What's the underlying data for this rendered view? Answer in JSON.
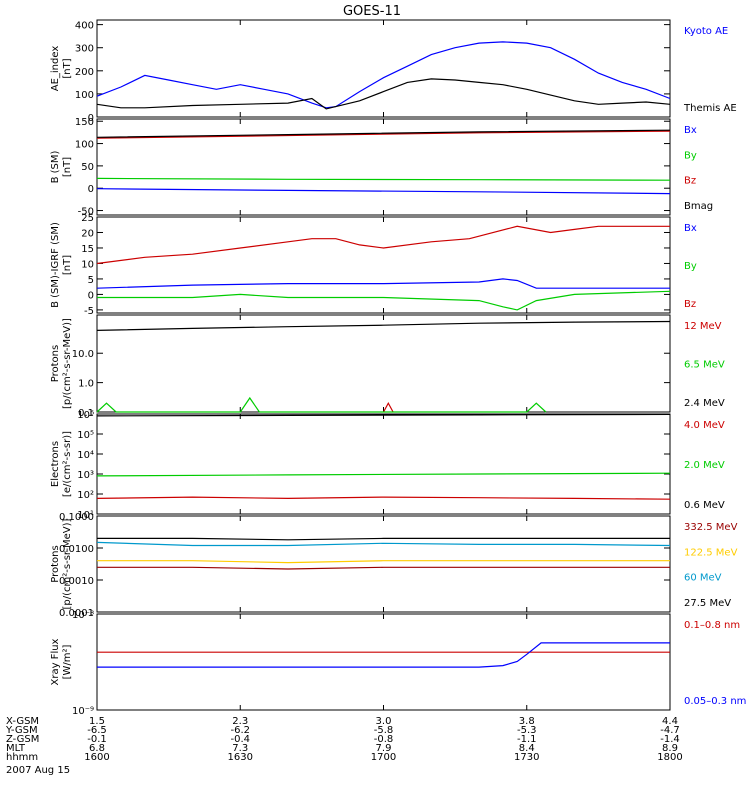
{
  "title": "GOES-11",
  "chart_data": [
    {
      "type": "line",
      "title": "GOES-11",
      "ylabel": [
        "AE_index",
        "[nT]"
      ],
      "ylim": [
        0,
        420
      ],
      "yticks": [
        0,
        100,
        200,
        300,
        400
      ],
      "ytick_labels": [
        "0",
        "100",
        "200",
        "300",
        "400"
      ],
      "scale": "linear",
      "xlim": [
        0,
        120
      ],
      "series": [
        {
          "name": "Kyoto AE",
          "color": "#0000ff",
          "x": [
            0,
            5,
            10,
            15,
            20,
            25,
            30,
            35,
            40,
            45,
            48,
            50,
            55,
            60,
            65,
            70,
            75,
            80,
            85,
            90,
            95,
            100,
            105,
            110,
            115,
            120
          ],
          "values": [
            90,
            130,
            180,
            160,
            140,
            120,
            140,
            120,
            100,
            60,
            40,
            45,
            110,
            170,
            220,
            270,
            300,
            320,
            325,
            320,
            300,
            250,
            190,
            150,
            120,
            80
          ]
        },
        {
          "name": "Themis AE",
          "color": "#000000",
          "x": [
            0,
            5,
            10,
            20,
            30,
            40,
            45,
            48,
            50,
            55,
            60,
            65,
            70,
            75,
            80,
            85,
            90,
            95,
            100,
            105,
            110,
            115,
            120
          ],
          "values": [
            55,
            40,
            40,
            50,
            55,
            60,
            80,
            35,
            45,
            70,
            110,
            150,
            165,
            160,
            150,
            140,
            120,
            95,
            70,
            55,
            60,
            65,
            55
          ]
        }
      ]
    },
    {
      "type": "line",
      "ylabel": [
        "B (SM)",
        "[nT]"
      ],
      "ylim": [
        -60,
        155
      ],
      "yticks": [
        -50,
        0,
        50,
        100,
        150
      ],
      "ytick_labels": [
        "-50",
        "0",
        "50",
        "100",
        "150"
      ],
      "scale": "linear",
      "xlim": [
        0,
        120
      ],
      "series": [
        {
          "name": "Bx",
          "color": "#0000ff",
          "x": [
            0,
            40,
            80,
            120
          ],
          "values": [
            -1,
            -5,
            -8,
            -12
          ]
        },
        {
          "name": "By",
          "color": "#00cc00",
          "x": [
            0,
            40,
            80,
            120
          ],
          "values": [
            22,
            20,
            19,
            18
          ]
        },
        {
          "name": "Bz",
          "color": "#cc0000",
          "x": [
            0,
            40,
            80,
            120
          ],
          "values": [
            112,
            118,
            124,
            128
          ]
        },
        {
          "name": "Bmag",
          "color": "#000000",
          "x": [
            0,
            40,
            80,
            120
          ],
          "values": [
            114,
            120,
            126,
            130
          ]
        }
      ]
    },
    {
      "type": "line",
      "ylabel": [
        "B (SM)-IGRF (SM)",
        "[nT]"
      ],
      "ylim": [
        -6,
        25
      ],
      "yticks": [
        -5,
        0,
        5,
        10,
        15,
        20,
        25
      ],
      "ytick_labels": [
        "-5",
        "0",
        "5",
        "10",
        "15",
        "20",
        "25"
      ],
      "scale": "linear",
      "xlim": [
        0,
        120
      ],
      "series": [
        {
          "name": "Bx",
          "color": "#0000ff",
          "x": [
            0,
            20,
            40,
            60,
            80,
            85,
            88,
            92,
            100,
            120
          ],
          "values": [
            2,
            3,
            3.5,
            3.5,
            4,
            5,
            4.5,
            2,
            2,
            2
          ]
        },
        {
          "name": "By",
          "color": "#00cc00",
          "x": [
            0,
            20,
            30,
            40,
            60,
            80,
            85,
            88,
            92,
            100,
            120
          ],
          "values": [
            -1,
            -1,
            0,
            -1,
            -1,
            -2,
            -4,
            -5,
            -2,
            0,
            1
          ]
        },
        {
          "name": "Bz",
          "color": "#cc0000",
          "x": [
            0,
            10,
            20,
            30,
            40,
            45,
            50,
            55,
            60,
            70,
            78,
            88,
            95,
            100,
            105,
            120
          ],
          "values": [
            10,
            12,
            13,
            15,
            17,
            18,
            18,
            16,
            15,
            17,
            18,
            22,
            20,
            21,
            22,
            22
          ]
        }
      ]
    },
    {
      "type": "line",
      "ylabel": [
        "Protons",
        "[p/(cm²-s-sr-MeV)]"
      ],
      "ylim": [
        0.1,
        200
      ],
      "yticks": [
        0.1,
        1.0,
        10.0
      ],
      "ytick_labels": [
        "0.1",
        "1.0",
        "10.0"
      ],
      "scale": "log",
      "xlim": [
        0,
        120
      ],
      "series": [
        {
          "name": "12 MeV",
          "color": "#cc0000",
          "x": [
            60,
            61,
            62
          ],
          "values": [
            0.1,
            0.2,
            0.1
          ]
        },
        {
          "name": "6.5 MeV",
          "color": "#00cc00",
          "x": [
            0,
            2,
            4,
            30,
            32,
            34,
            90,
            92,
            94
          ],
          "values": [
            0.1,
            0.2,
            0.1,
            0.1,
            0.3,
            0.1,
            0.1,
            0.2,
            0.1
          ]
        },
        {
          "name": "2.4 MeV",
          "color": "#000000",
          "x": [
            0,
            20,
            40,
            60,
            80,
            100,
            120
          ],
          "values": [
            60,
            70,
            80,
            90,
            105,
            115,
            120
          ]
        }
      ]
    },
    {
      "type": "line",
      "ylabel": [
        "Electrons",
        "[e/(cm²-s-sr)]"
      ],
      "ylim": [
        10,
        1000000
      ],
      "yticks": [
        10,
        100,
        1000,
        10000,
        100000,
        1000000
      ],
      "ytick_labels": [
        "10¹",
        "10²",
        "10³",
        "10⁴",
        "10⁵",
        "10⁶"
      ],
      "scale": "log",
      "xlim": [
        0,
        120
      ],
      "series": [
        {
          "name": "4.0 MeV",
          "color": "#cc0000",
          "x": [
            0,
            20,
            40,
            60,
            80,
            100,
            120
          ],
          "values": [
            60,
            70,
            60,
            70,
            65,
            60,
            55
          ]
        },
        {
          "name": "2.0 MeV",
          "color": "#00cc00",
          "x": [
            0,
            40,
            80,
            120
          ],
          "values": [
            800,
            900,
            1000,
            1100
          ]
        },
        {
          "name": "0.6 MeV",
          "color": "#000000",
          "x": [
            0,
            40,
            80,
            120
          ],
          "values": [
            800000,
            850000,
            900000,
            950000
          ]
        }
      ]
    },
    {
      "type": "line",
      "ylabel": [
        "Protons",
        "[p/(cm²-s-sr-MeV)]"
      ],
      "ylim": [
        0.0001,
        0.1
      ],
      "yticks": [
        0.0001,
        0.001,
        0.01,
        0.1
      ],
      "ytick_labels": [
        "0.0001",
        "0.0010",
        "0.0100",
        "0.1000"
      ],
      "scale": "log",
      "xlim": [
        0,
        120
      ],
      "series": [
        {
          "name": "332.5 MeV",
          "color": "#990000",
          "x": [
            0,
            20,
            40,
            60,
            80,
            100,
            120
          ],
          "values": [
            0.0025,
            0.0025,
            0.0022,
            0.0025,
            0.0025,
            0.0025,
            0.0025
          ]
        },
        {
          "name": "122.5 MeV",
          "color": "#ffcc00",
          "x": [
            0,
            20,
            40,
            60,
            80,
            100,
            120
          ],
          "values": [
            0.004,
            0.004,
            0.0035,
            0.004,
            0.004,
            0.004,
            0.004
          ]
        },
        {
          "name": "60 MeV",
          "color": "#0099cc",
          "x": [
            0,
            20,
            40,
            60,
            80,
            100,
            120
          ],
          "values": [
            0.015,
            0.012,
            0.012,
            0.014,
            0.013,
            0.013,
            0.012
          ]
        },
        {
          "name": "27.5 MeV",
          "color": "#000000",
          "x": [
            0,
            20,
            40,
            60,
            80,
            100,
            120
          ],
          "values": [
            0.02,
            0.02,
            0.018,
            0.02,
            0.02,
            0.02,
            0.02
          ]
        }
      ]
    },
    {
      "type": "line",
      "ylabel": [
        "Xray Flux",
        "[W/m²]"
      ],
      "ylim": [
        1e-09,
        1e-08
      ],
      "yticks": [
        1e-09,
        1e-08
      ],
      "ytick_labels": [
        "10⁻⁹",
        "10⁻⁸"
      ],
      "scale": "log",
      "xlim": [
        0,
        120
      ],
      "series": [
        {
          "name": "0.1–0.8 nm",
          "color": "#cc0000",
          "x": [
            0,
            120
          ],
          "values": [
            4e-09,
            4e-09
          ]
        },
        {
          "name": "0.05–0.3 nm",
          "color": "#0000ff",
          "x": [
            0,
            30,
            60,
            80,
            85,
            88,
            90,
            93,
            100,
            120
          ],
          "values": [
            2.8e-09,
            2.8e-09,
            2.8e-09,
            2.8e-09,
            2.9e-09,
            3.2e-09,
            3.8e-09,
            5e-09,
            5e-09,
            5e-09
          ]
        }
      ]
    }
  ],
  "x_axis": {
    "row_labels": [
      "X-GSM",
      "Y-GSM",
      "Z-GSM",
      "MLT",
      "hhmm"
    ],
    "date": "2007 Aug 15",
    "ticks": [
      {
        "x": 0,
        "values": [
          "1.5",
          "-6.5",
          "-0.1",
          "6.8",
          "1600"
        ]
      },
      {
        "x": 30,
        "values": [
          "2.3",
          "-6.2",
          "-0.4",
          "7.3",
          "1630"
        ]
      },
      {
        "x": 60,
        "values": [
          "3.0",
          "-5.8",
          "-0.8",
          "7.9",
          "1700"
        ]
      },
      {
        "x": 90,
        "values": [
          "3.8",
          "-5.3",
          "-1.1",
          "8.4",
          "1730"
        ]
      },
      {
        "x": 120,
        "values": [
          "4.4",
          "-4.7",
          "-1.4",
          "8.9",
          "1800"
        ]
      }
    ]
  }
}
